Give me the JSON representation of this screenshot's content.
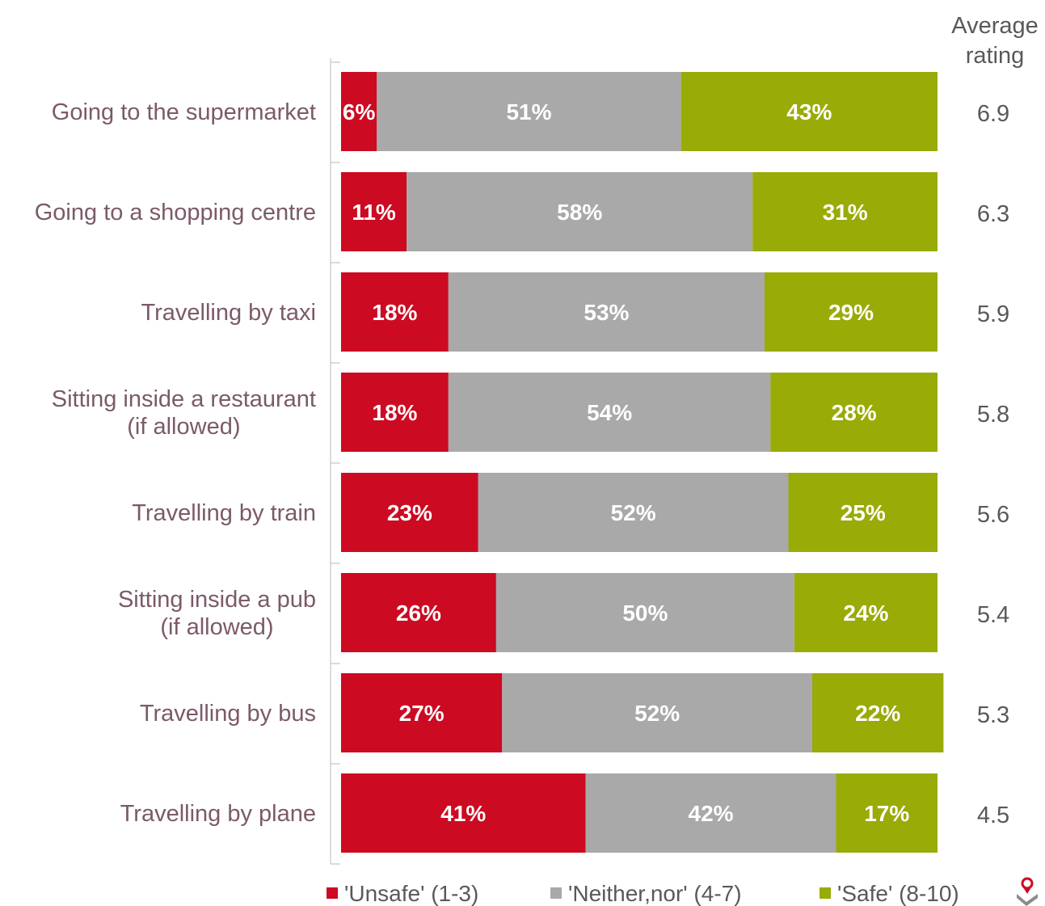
{
  "chart_data": {
    "type": "bar",
    "orientation": "horizontal",
    "stacked": true,
    "categories": [
      "Going to the supermarket",
      "Going to a shopping centre",
      "Travelling by taxi",
      "Sitting inside a restaurant (if allowed)",
      "Travelling by train",
      "Sitting inside a pub (if allowed)",
      "Travelling by bus",
      "Travelling by plane"
    ],
    "category_lines": [
      [
        "Going to the supermarket"
      ],
      [
        "Going to a shopping centre"
      ],
      [
        "Travelling by taxi"
      ],
      [
        "Sitting inside a restaurant",
        "(if allowed)"
      ],
      [
        "Travelling by train"
      ],
      [
        "Sitting inside a pub",
        "(if allowed)"
      ],
      [
        "Travelling by bus"
      ],
      [
        "Travelling by plane"
      ]
    ],
    "series": [
      {
        "name": "'Unsafe' (1-3)",
        "color": "#cc0a22",
        "values": [
          6,
          11,
          18,
          18,
          23,
          26,
          27,
          41
        ]
      },
      {
        "name": "'Neither,nor' (4-7)",
        "color": "#a9a9a9",
        "values": [
          51,
          58,
          53,
          54,
          52,
          50,
          52,
          42
        ]
      },
      {
        "name": "'Safe' (8-10)",
        "color": "#99ab06",
        "values": [
          43,
          31,
          29,
          28,
          25,
          24,
          22,
          17
        ]
      }
    ],
    "value_suffix": "%",
    "xlim": [
      0,
      100
    ],
    "average_rating": {
      "header": [
        "Average",
        "rating"
      ],
      "values": [
        "6.9",
        "6.3",
        "5.9",
        "5.8",
        "5.6",
        "5.4",
        "5.3",
        "4.5"
      ]
    },
    "legend_position": "bottom"
  },
  "logo": {
    "icon": "company-logo-icon",
    "color": "#cc0a22"
  }
}
